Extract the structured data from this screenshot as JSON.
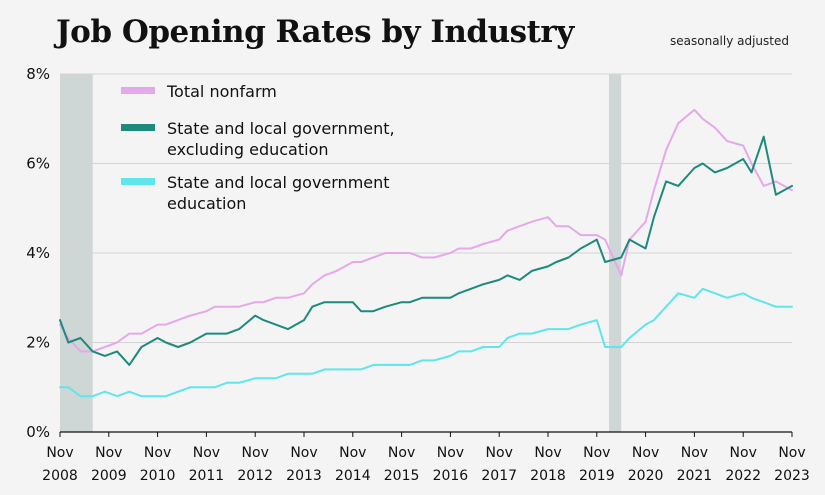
{
  "header": {
    "title": "Job Opening Rates by Industry",
    "subtitle": "seasonally adjusted"
  },
  "colors": {
    "total_nonfarm": "#e6a8ea",
    "state_local_excl_edu": "#1d8a7c",
    "state_local_edu": "#5fe6ec",
    "recession": "#cfd6d6",
    "grid": "#d4d4d6",
    "axis": "#111111"
  },
  "chart_data": {
    "type": "line",
    "title": "Job Opening Rates by Industry",
    "subtitle": "seasonally adjusted",
    "xlabel": "",
    "ylabel": "",
    "ylim": [
      0,
      8
    ],
    "y_ticks": [
      "0%",
      "2%",
      "4%",
      "6%",
      "8%"
    ],
    "x_ticks": [
      {
        "top": "Nov",
        "bottom": "2008",
        "t": 2008.83
      },
      {
        "top": "Nov",
        "bottom": "2009",
        "t": 2009.83
      },
      {
        "top": "Nov",
        "bottom": "2010",
        "t": 2010.83
      },
      {
        "top": "Nov",
        "bottom": "2011",
        "t": 2011.83
      },
      {
        "top": "Nov",
        "bottom": "2012",
        "t": 2012.83
      },
      {
        "top": "Nov",
        "bottom": "2013",
        "t": 2013.83
      },
      {
        "top": "Nov",
        "bottom": "2014",
        "t": 2014.83
      },
      {
        "top": "Nov",
        "bottom": "2015",
        "t": 2015.83
      },
      {
        "top": "Nov",
        "bottom": "2016",
        "t": 2016.83
      },
      {
        "top": "Nov",
        "bottom": "2017",
        "t": 2017.83
      },
      {
        "top": "Nov",
        "bottom": "2018",
        "t": 2018.83
      },
      {
        "top": "Nov",
        "bottom": "2019",
        "t": 2019.83
      },
      {
        "top": "Nov",
        "bottom": "2020",
        "t": 2020.83
      },
      {
        "top": "Nov",
        "bottom": "2021",
        "t": 2021.83
      },
      {
        "top": "Nov",
        "bottom": "2022",
        "t": 2022.83
      },
      {
        "top": "Nov",
        "bottom": "2023",
        "t": 2023.83
      }
    ],
    "xlim": [
      2008.83,
      2023.83
    ],
    "recessions": [
      [
        2008.83,
        2009.5
      ],
      [
        2020.08,
        2020.33
      ]
    ],
    "legend": "top-left",
    "grid": true,
    "series": [
      {
        "name": "Total nonfarm",
        "key": "total_nonfarm",
        "points": [
          [
            2008.83,
            2.4
          ],
          [
            2009.0,
            2.1
          ],
          [
            2009.25,
            1.8
          ],
          [
            2009.5,
            1.8
          ],
          [
            2009.75,
            1.9
          ],
          [
            2010.0,
            2.0
          ],
          [
            2010.25,
            2.2
          ],
          [
            2010.5,
            2.2
          ],
          [
            2010.83,
            2.4
          ],
          [
            2011.0,
            2.4
          ],
          [
            2011.25,
            2.5
          ],
          [
            2011.5,
            2.6
          ],
          [
            2011.83,
            2.7
          ],
          [
            2012.0,
            2.8
          ],
          [
            2012.25,
            2.8
          ],
          [
            2012.5,
            2.8
          ],
          [
            2012.83,
            2.9
          ],
          [
            2013.0,
            2.9
          ],
          [
            2013.25,
            3.0
          ],
          [
            2013.5,
            3.0
          ],
          [
            2013.83,
            3.1
          ],
          [
            2014.0,
            3.3
          ],
          [
            2014.25,
            3.5
          ],
          [
            2014.5,
            3.6
          ],
          [
            2014.83,
            3.8
          ],
          [
            2015.0,
            3.8
          ],
          [
            2015.25,
            3.9
          ],
          [
            2015.5,
            4.0
          ],
          [
            2015.83,
            4.0
          ],
          [
            2016.0,
            4.0
          ],
          [
            2016.25,
            3.9
          ],
          [
            2016.5,
            3.9
          ],
          [
            2016.83,
            4.0
          ],
          [
            2017.0,
            4.1
          ],
          [
            2017.25,
            4.1
          ],
          [
            2017.5,
            4.2
          ],
          [
            2017.83,
            4.3
          ],
          [
            2018.0,
            4.5
          ],
          [
            2018.25,
            4.6
          ],
          [
            2018.5,
            4.7
          ],
          [
            2018.83,
            4.8
          ],
          [
            2019.0,
            4.6
          ],
          [
            2019.25,
            4.6
          ],
          [
            2019.5,
            4.4
          ],
          [
            2019.83,
            4.4
          ],
          [
            2020.0,
            4.3
          ],
          [
            2020.33,
            3.5
          ],
          [
            2020.5,
            4.3
          ],
          [
            2020.83,
            4.7
          ],
          [
            2021.0,
            5.4
          ],
          [
            2021.25,
            6.3
          ],
          [
            2021.5,
            6.9
          ],
          [
            2021.83,
            7.2
          ],
          [
            2022.0,
            7.0
          ],
          [
            2022.25,
            6.8
          ],
          [
            2022.5,
            6.5
          ],
          [
            2022.83,
            6.4
          ],
          [
            2023.0,
            6.0
          ],
          [
            2023.25,
            5.5
          ],
          [
            2023.5,
            5.6
          ],
          [
            2023.83,
            5.4
          ]
        ]
      },
      {
        "name": "State and local government, excluding education",
        "key": "state_local_excl_edu",
        "points": [
          [
            2008.83,
            2.5
          ],
          [
            2009.0,
            2.0
          ],
          [
            2009.25,
            2.1
          ],
          [
            2009.5,
            1.8
          ],
          [
            2009.75,
            1.7
          ],
          [
            2010.0,
            1.8
          ],
          [
            2010.25,
            1.5
          ],
          [
            2010.5,
            1.9
          ],
          [
            2010.83,
            2.1
          ],
          [
            2011.0,
            2.0
          ],
          [
            2011.25,
            1.9
          ],
          [
            2011.5,
            2.0
          ],
          [
            2011.83,
            2.2
          ],
          [
            2012.0,
            2.2
          ],
          [
            2012.25,
            2.2
          ],
          [
            2012.5,
            2.3
          ],
          [
            2012.83,
            2.6
          ],
          [
            2013.0,
            2.5
          ],
          [
            2013.25,
            2.4
          ],
          [
            2013.5,
            2.3
          ],
          [
            2013.83,
            2.5
          ],
          [
            2014.0,
            2.8
          ],
          [
            2014.25,
            2.9
          ],
          [
            2014.5,
            2.9
          ],
          [
            2014.83,
            2.9
          ],
          [
            2015.0,
            2.7
          ],
          [
            2015.25,
            2.7
          ],
          [
            2015.5,
            2.8
          ],
          [
            2015.83,
            2.9
          ],
          [
            2016.0,
            2.9
          ],
          [
            2016.25,
            3.0
          ],
          [
            2016.5,
            3.0
          ],
          [
            2016.83,
            3.0
          ],
          [
            2017.0,
            3.1
          ],
          [
            2017.25,
            3.2
          ],
          [
            2017.5,
            3.3
          ],
          [
            2017.83,
            3.4
          ],
          [
            2018.0,
            3.5
          ],
          [
            2018.25,
            3.4
          ],
          [
            2018.5,
            3.6
          ],
          [
            2018.83,
            3.7
          ],
          [
            2019.0,
            3.8
          ],
          [
            2019.25,
            3.9
          ],
          [
            2019.5,
            4.1
          ],
          [
            2019.83,
            4.3
          ],
          [
            2020.0,
            3.8
          ],
          [
            2020.33,
            3.9
          ],
          [
            2020.5,
            4.3
          ],
          [
            2020.83,
            4.1
          ],
          [
            2021.0,
            4.8
          ],
          [
            2021.25,
            5.6
          ],
          [
            2021.5,
            5.5
          ],
          [
            2021.83,
            5.9
          ],
          [
            2022.0,
            6.0
          ],
          [
            2022.25,
            5.8
          ],
          [
            2022.5,
            5.9
          ],
          [
            2022.83,
            6.1
          ],
          [
            2023.0,
            5.8
          ],
          [
            2023.25,
            6.6
          ],
          [
            2023.5,
            5.3
          ],
          [
            2023.83,
            5.5
          ]
        ]
      },
      {
        "name": "State and local government education",
        "key": "state_local_edu",
        "points": [
          [
            2008.83,
            1.0
          ],
          [
            2009.0,
            1.0
          ],
          [
            2009.25,
            0.8
          ],
          [
            2009.5,
            0.8
          ],
          [
            2009.75,
            0.9
          ],
          [
            2010.0,
            0.8
          ],
          [
            2010.25,
            0.9
          ],
          [
            2010.5,
            0.8
          ],
          [
            2010.83,
            0.8
          ],
          [
            2011.0,
            0.8
          ],
          [
            2011.25,
            0.9
          ],
          [
            2011.5,
            1.0
          ],
          [
            2011.83,
            1.0
          ],
          [
            2012.0,
            1.0
          ],
          [
            2012.25,
            1.1
          ],
          [
            2012.5,
            1.1
          ],
          [
            2012.83,
            1.2
          ],
          [
            2013.0,
            1.2
          ],
          [
            2013.25,
            1.2
          ],
          [
            2013.5,
            1.3
          ],
          [
            2013.83,
            1.3
          ],
          [
            2014.0,
            1.3
          ],
          [
            2014.25,
            1.4
          ],
          [
            2014.5,
            1.4
          ],
          [
            2014.83,
            1.4
          ],
          [
            2015.0,
            1.4
          ],
          [
            2015.25,
            1.5
          ],
          [
            2015.5,
            1.5
          ],
          [
            2015.83,
            1.5
          ],
          [
            2016.0,
            1.5
          ],
          [
            2016.25,
            1.6
          ],
          [
            2016.5,
            1.6
          ],
          [
            2016.83,
            1.7
          ],
          [
            2017.0,
            1.8
          ],
          [
            2017.25,
            1.8
          ],
          [
            2017.5,
            1.9
          ],
          [
            2017.83,
            1.9
          ],
          [
            2018.0,
            2.1
          ],
          [
            2018.25,
            2.2
          ],
          [
            2018.5,
            2.2
          ],
          [
            2018.83,
            2.3
          ],
          [
            2019.0,
            2.3
          ],
          [
            2019.25,
            2.3
          ],
          [
            2019.5,
            2.4
          ],
          [
            2019.83,
            2.5
          ],
          [
            2020.0,
            1.9
          ],
          [
            2020.33,
            1.9
          ],
          [
            2020.5,
            2.1
          ],
          [
            2020.83,
            2.4
          ],
          [
            2021.0,
            2.5
          ],
          [
            2021.25,
            2.8
          ],
          [
            2021.5,
            3.1
          ],
          [
            2021.83,
            3.0
          ],
          [
            2022.0,
            3.2
          ],
          [
            2022.25,
            3.1
          ],
          [
            2022.5,
            3.0
          ],
          [
            2022.83,
            3.1
          ],
          [
            2023.0,
            3.0
          ],
          [
            2023.25,
            2.9
          ],
          [
            2023.5,
            2.8
          ],
          [
            2023.83,
            2.8
          ]
        ]
      }
    ]
  }
}
